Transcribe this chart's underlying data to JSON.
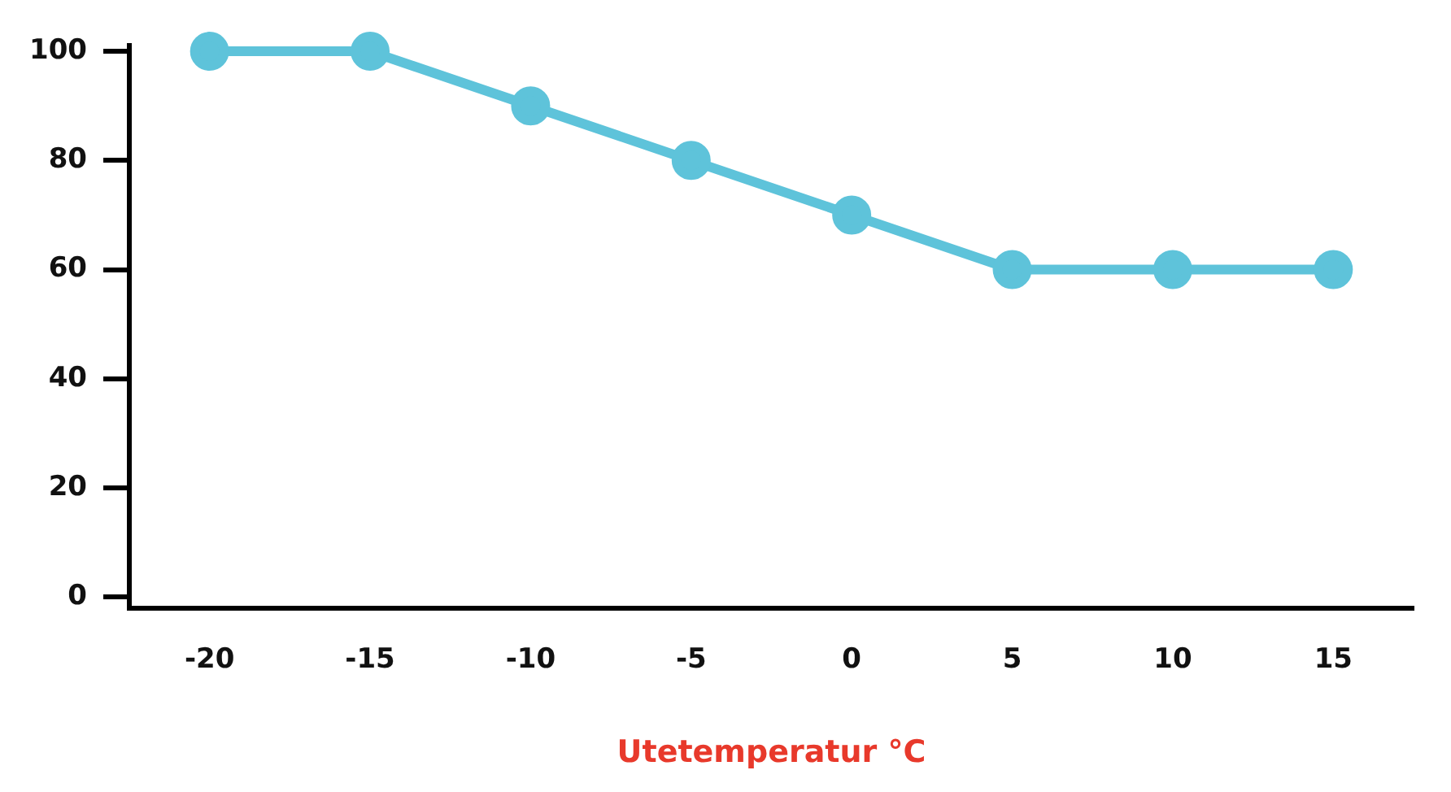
{
  "chart_data": {
    "type": "line",
    "xlabel": "Utetemperatur °C",
    "categories": [
      "-20",
      "-15",
      "-10",
      "-5",
      "0",
      "5",
      "10",
      "15"
    ],
    "series": [
      {
        "color": "#5ec3da",
        "values": [
          100,
          100,
          90,
          80,
          70,
          60,
          60,
          60
        ]
      }
    ],
    "ylim": [
      -2,
      101
    ],
    "yticks": [
      0,
      20,
      40,
      60,
      80,
      100
    ],
    "grid": false,
    "legend": false,
    "marker": "circle",
    "line_style": "solid"
  }
}
